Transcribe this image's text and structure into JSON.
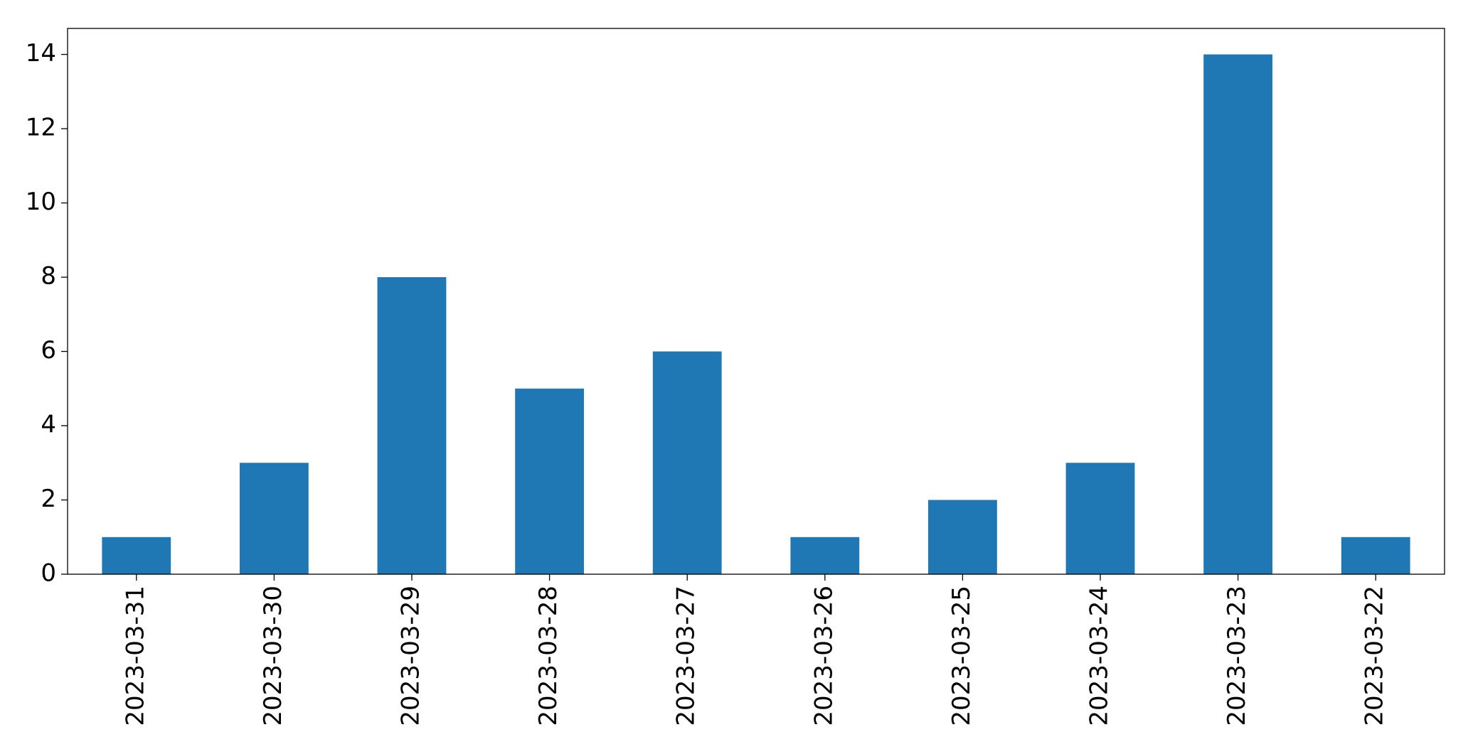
{
  "chart_data": {
    "type": "bar",
    "categories": [
      "2023-03-31",
      "2023-03-30",
      "2023-03-29",
      "2023-03-28",
      "2023-03-27",
      "2023-03-26",
      "2023-03-25",
      "2023-03-24",
      "2023-03-23",
      "2023-03-22"
    ],
    "values": [
      1,
      3,
      8,
      5,
      6,
      1,
      2,
      3,
      14,
      1
    ],
    "color": "#1f77b4",
    "ylim": [
      0,
      14.7
    ],
    "yticks": [
      0,
      2,
      4,
      6,
      8,
      10,
      12,
      14
    ],
    "grid": false
  }
}
